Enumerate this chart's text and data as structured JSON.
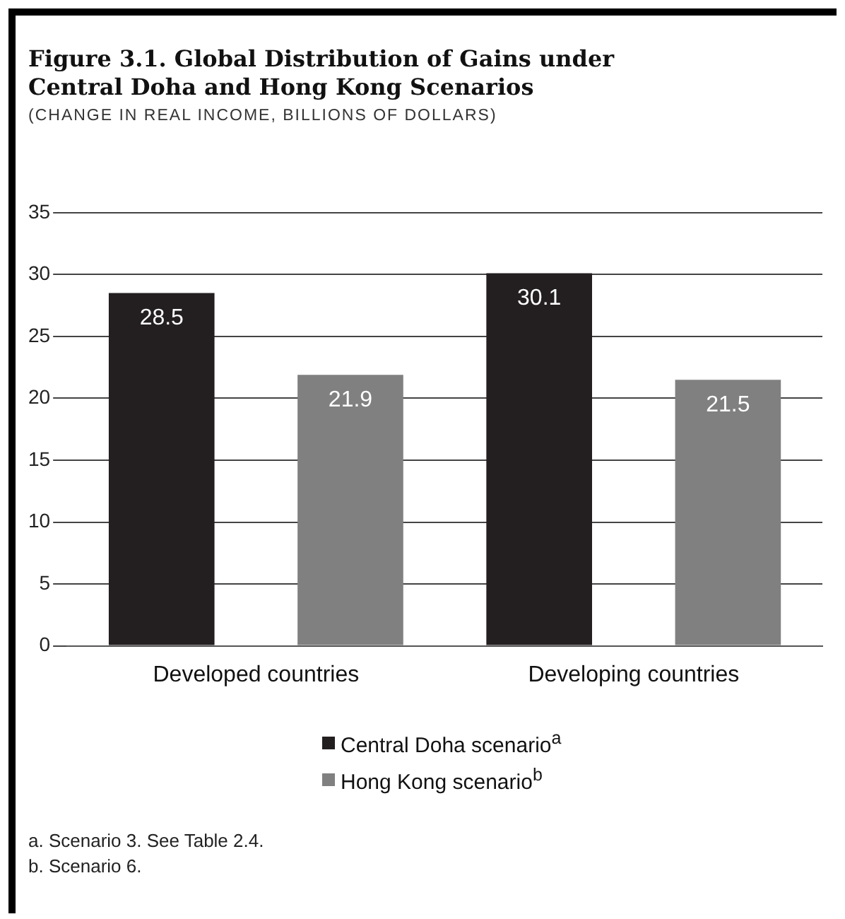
{
  "chart_data": {
    "type": "bar",
    "title": "Figure 3.1.  Global Distribution of Gains under Central Doha and Hong Kong Scenarios",
    "subtitle": "(CHANGE IN REAL INCOME, BILLIONS OF DOLLARS)",
    "categories": [
      "Developed countries",
      "Developing countries"
    ],
    "series": [
      {
        "name": "Central Doha scenario$^{a}$",
        "color": "#231f20",
        "values": [
          28.5,
          30.1
        ]
      },
      {
        "name": "Hong Kong scenario$^{b}$",
        "color": "#808080",
        "values": [
          21.9,
          21.5
        ]
      }
    ],
    "ylim": [
      0,
      35
    ],
    "yticks": [
      0,
      5,
      10,
      15,
      20,
      25,
      30,
      35
    ],
    "grid": "y",
    "legend": "bottom",
    "data_labels": true,
    "annotations": [
      "a. Scenario 3. See Table 2.4.",
      "b. Scenario 6."
    ]
  }
}
